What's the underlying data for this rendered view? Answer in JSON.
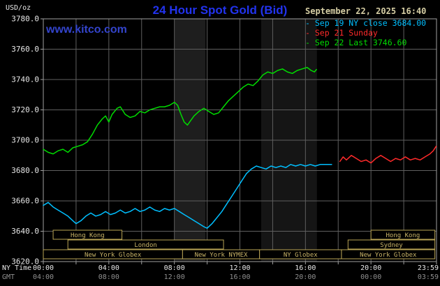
{
  "header": {
    "units": "USD/oz",
    "title": "24 Hour Spot Gold (Bid)",
    "datetime": "September 22, 2025 16:40",
    "watermark": "www.kitco.com"
  },
  "legend": [
    {
      "label": "Sep 19 NY close 3684.00",
      "color": "#00BFFF"
    },
    {
      "label": "Sep 21 Sunday",
      "color": "#FF2A2A"
    },
    {
      "label": "Sep 22 Last 3746.60",
      "color": "#00DC00"
    }
  ],
  "colors": {
    "background": "#000000",
    "title": "#2233EE",
    "watermark": "#3344CC",
    "datetime": "#D6CEA4",
    "grid": "#5F5F5F",
    "frame": "#A0A0A0",
    "axis_text": "#E8E8E8",
    "axis_text_secondary": "#8F8F8F",
    "session_border": "#B9A455",
    "session_text": "#C9B468"
  },
  "axes": {
    "y_ticks": [
      "3780.0",
      "3760.0",
      "3740.0",
      "3720.0",
      "3700.0",
      "3680.0",
      "3660.0",
      "3640.0",
      "3620.0"
    ],
    "x_row1_caption": "NY Time",
    "x_row2_caption": "GMT",
    "x_ticks": [
      {
        "hour": 0,
        "ny": "00:00",
        "gmt": "04:00"
      },
      {
        "hour": 4,
        "ny": "04:00",
        "gmt": "08:00"
      },
      {
        "hour": 8,
        "ny": "08:00",
        "gmt": "12:00"
      },
      {
        "hour": 12,
        "ny": "12:00",
        "gmt": "16:00"
      },
      {
        "hour": 16,
        "ny": "16:00",
        "gmt": "20:00"
      },
      {
        "hour": 20,
        "ny": "20:00",
        "gmt": "00:00"
      },
      {
        "hour": 24,
        "ny": "23:59",
        "gmt": "03:59"
      }
    ]
  },
  "sessions": [
    {
      "row": 0,
      "label": "Hong Kong",
      "start": 0.6,
      "end": 4.8
    },
    {
      "row": 0,
      "label": "Hong Kong",
      "start": 20.0,
      "end": 23.9
    },
    {
      "row": 1,
      "label": "London",
      "start": 1.5,
      "end": 11.0
    },
    {
      "row": 1,
      "label": "Sydney",
      "start": 18.6,
      "end": 23.9
    },
    {
      "row": 2,
      "label": "New York Globex",
      "start": 0.0,
      "end": 8.5
    },
    {
      "row": 2,
      "label": "New York NYMEX",
      "start": 8.5,
      "end": 13.2
    },
    {
      "row": 2,
      "label": "NY Globex",
      "start": 13.2,
      "end": 18.2
    },
    {
      "row": 2,
      "label": "New York Globex",
      "start": 18.2,
      "end": 23.9
    }
  ],
  "chart_data": {
    "type": "line",
    "title": "24 Hour Spot Gold (Bid)",
    "xlabel": "NY Time (hours 00:00-23:59)",
    "ylabel": "USD/oz",
    "ylim": [
      3620,
      3780
    ],
    "xlim_hours": [
      0,
      24
    ],
    "y_gridline_step": 20,
    "x_gridline_step_hours": 2,
    "grid": true,
    "legend_position": "top-right",
    "shaded_bands": [
      {
        "start": 8.0,
        "end": 9.9,
        "color": "#1E1E1E"
      },
      {
        "start": 13.3,
        "end": 16.7,
        "color": "#151515"
      }
    ],
    "series": [
      {
        "id": "sep19",
        "name": "Sep 19 NY close 3684.00",
        "close": 3684.0,
        "color": "#00BFFF",
        "points": [
          [
            0,
            3657
          ],
          [
            0.3,
            3659
          ],
          [
            0.6,
            3656
          ],
          [
            0.9,
            3654
          ],
          [
            1.2,
            3652
          ],
          [
            1.5,
            3650
          ],
          [
            1.8,
            3647
          ],
          [
            2.0,
            3645
          ],
          [
            2.3,
            3647
          ],
          [
            2.6,
            3650
          ],
          [
            2.9,
            3652
          ],
          [
            3.2,
            3650
          ],
          [
            3.5,
            3651
          ],
          [
            3.8,
            3653
          ],
          [
            4.1,
            3651
          ],
          [
            4.4,
            3652
          ],
          [
            4.7,
            3654
          ],
          [
            5.0,
            3652
          ],
          [
            5.3,
            3653
          ],
          [
            5.6,
            3655
          ],
          [
            5.9,
            3653
          ],
          [
            6.2,
            3654
          ],
          [
            6.5,
            3656
          ],
          [
            6.8,
            3654
          ],
          [
            7.1,
            3653
          ],
          [
            7.4,
            3655
          ],
          [
            7.7,
            3654
          ],
          [
            8.0,
            3655
          ],
          [
            8.3,
            3653
          ],
          [
            8.6,
            3651
          ],
          [
            8.9,
            3649
          ],
          [
            9.2,
            3647
          ],
          [
            9.5,
            3645
          ],
          [
            9.8,
            3643
          ],
          [
            10.0,
            3642
          ],
          [
            10.3,
            3645
          ],
          [
            10.6,
            3649
          ],
          [
            10.9,
            3653
          ],
          [
            11.2,
            3658
          ],
          [
            11.5,
            3663
          ],
          [
            11.8,
            3668
          ],
          [
            12.1,
            3673
          ],
          [
            12.4,
            3678
          ],
          [
            12.7,
            3681
          ],
          [
            13.0,
            3683
          ],
          [
            13.3,
            3682
          ],
          [
            13.6,
            3681
          ],
          [
            13.9,
            3683
          ],
          [
            14.2,
            3682
          ],
          [
            14.5,
            3683
          ],
          [
            14.8,
            3682
          ],
          [
            15.1,
            3684
          ],
          [
            15.4,
            3683
          ],
          [
            15.7,
            3684
          ],
          [
            16.0,
            3683
          ],
          [
            16.3,
            3684
          ],
          [
            16.6,
            3683
          ],
          [
            16.9,
            3684
          ],
          [
            17.2,
            3684
          ],
          [
            17.6,
            3684
          ]
        ]
      },
      {
        "id": "sep21",
        "name": "Sep 21 Sunday",
        "color": "#FF2A2A",
        "points": [
          [
            18.1,
            3686
          ],
          [
            18.3,
            3689
          ],
          [
            18.5,
            3687
          ],
          [
            18.8,
            3690
          ],
          [
            19.1,
            3688
          ],
          [
            19.4,
            3686
          ],
          [
            19.7,
            3687
          ],
          [
            20.0,
            3685
          ],
          [
            20.3,
            3688
          ],
          [
            20.6,
            3690
          ],
          [
            20.9,
            3688
          ],
          [
            21.2,
            3686
          ],
          [
            21.5,
            3688
          ],
          [
            21.8,
            3687
          ],
          [
            22.1,
            3689
          ],
          [
            22.4,
            3687
          ],
          [
            22.7,
            3688
          ],
          [
            23.0,
            3687
          ],
          [
            23.3,
            3689
          ],
          [
            23.6,
            3691
          ],
          [
            23.8,
            3693
          ],
          [
            23.98,
            3696
          ]
        ]
      },
      {
        "id": "sep22",
        "name": "Sep 22 Last 3746.60",
        "last": 3746.6,
        "color": "#00DC00",
        "points": [
          [
            0,
            3694
          ],
          [
            0.3,
            3692
          ],
          [
            0.6,
            3691
          ],
          [
            0.9,
            3693
          ],
          [
            1.2,
            3694
          ],
          [
            1.5,
            3692
          ],
          [
            1.8,
            3695
          ],
          [
            2.1,
            3696
          ],
          [
            2.4,
            3697
          ],
          [
            2.7,
            3699
          ],
          [
            3.0,
            3704
          ],
          [
            3.3,
            3710
          ],
          [
            3.6,
            3714
          ],
          [
            3.8,
            3716
          ],
          [
            4.0,
            3712
          ],
          [
            4.2,
            3717
          ],
          [
            4.5,
            3721
          ],
          [
            4.7,
            3722
          ],
          [
            5.0,
            3717
          ],
          [
            5.3,
            3715
          ],
          [
            5.6,
            3716
          ],
          [
            5.9,
            3719
          ],
          [
            6.2,
            3718
          ],
          [
            6.5,
            3720
          ],
          [
            6.8,
            3721
          ],
          [
            7.1,
            3722
          ],
          [
            7.4,
            3722
          ],
          [
            7.7,
            3723
          ],
          [
            8.0,
            3725
          ],
          [
            8.2,
            3723
          ],
          [
            8.4,
            3717
          ],
          [
            8.6,
            3712
          ],
          [
            8.8,
            3710
          ],
          [
            9.0,
            3713
          ],
          [
            9.2,
            3716
          ],
          [
            9.5,
            3719
          ],
          [
            9.8,
            3721
          ],
          [
            10.1,
            3719
          ],
          [
            10.4,
            3717
          ],
          [
            10.7,
            3718
          ],
          [
            11.0,
            3722
          ],
          [
            11.3,
            3726
          ],
          [
            11.6,
            3729
          ],
          [
            11.9,
            3732
          ],
          [
            12.2,
            3735
          ],
          [
            12.5,
            3737
          ],
          [
            12.8,
            3736
          ],
          [
            13.1,
            3739
          ],
          [
            13.4,
            3743
          ],
          [
            13.7,
            3745
          ],
          [
            14.0,
            3744
          ],
          [
            14.3,
            3746
          ],
          [
            14.6,
            3747
          ],
          [
            14.9,
            3745
          ],
          [
            15.2,
            3744
          ],
          [
            15.5,
            3746
          ],
          [
            15.8,
            3747
          ],
          [
            16.1,
            3748
          ],
          [
            16.35,
            3746
          ],
          [
            16.55,
            3745
          ],
          [
            16.67,
            3746.6
          ]
        ]
      }
    ]
  }
}
